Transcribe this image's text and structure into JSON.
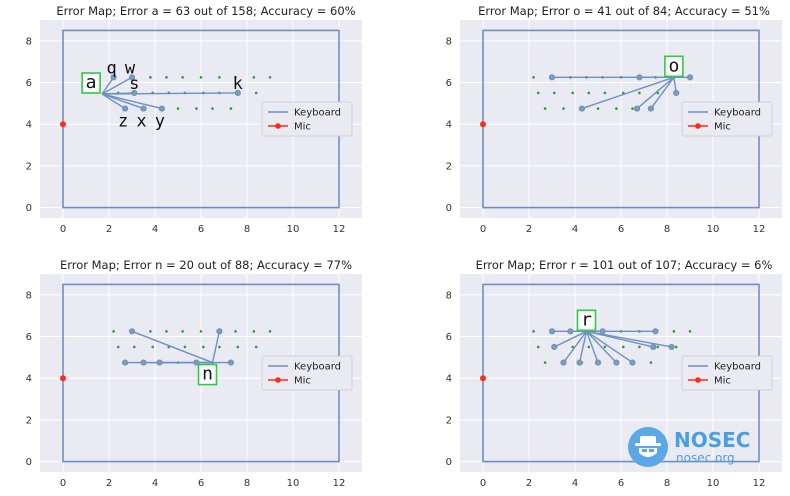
{
  "watermark": {
    "name": "NOSEC",
    "site": "nosec.org",
    "logo_icon": "hat-shield-icon"
  },
  "chart_data": [
    {
      "type": "scatter",
      "title": "Error Map; Error a = 63 out of 158; Accuracy =    60%",
      "xlim": [
        -1,
        13
      ],
      "ylim": [
        -0.5,
        9
      ],
      "xticks": [
        0,
        2,
        4,
        6,
        8,
        10,
        12
      ],
      "yticks": [
        0,
        2,
        4,
        6,
        8
      ],
      "grid": true,
      "legend": "center-right",
      "legend_entries": [
        "Keyboard",
        "Mic"
      ],
      "key": {
        "label": "a",
        "x": 1.7,
        "y": 5.45
      },
      "errors": [
        {
          "label": "q",
          "x": 2.2,
          "y": 6.25
        },
        {
          "label": "w",
          "x": 3.0,
          "y": 6.25
        },
        {
          "label": "s",
          "x": 3.1,
          "y": 5.5
        },
        {
          "label": "k",
          "x": 7.6,
          "y": 5.5
        },
        {
          "label": "z",
          "x": 2.7,
          "y": 4.75
        },
        {
          "label": "x",
          "x": 3.5,
          "y": 4.75
        },
        {
          "label": "y",
          "x": 4.3,
          "y": 4.75
        }
      ],
      "mic": {
        "x": 0,
        "y": 4
      }
    },
    {
      "type": "scatter",
      "title": "Error Map; Error o = 41 out of 84; Accuracy =    51%",
      "xlim": [
        -1,
        13
      ],
      "ylim": [
        -0.5,
        9
      ],
      "xticks": [
        0,
        2,
        4,
        6,
        8,
        10,
        12
      ],
      "yticks": [
        0,
        2,
        4,
        6,
        8
      ],
      "grid": true,
      "legend": "center-right",
      "legend_entries": [
        "Keyboard",
        "Mic"
      ],
      "key": {
        "label": "o",
        "x": 8.3,
        "y": 6.25
      },
      "errors": [
        {
          "x": 3.0,
          "y": 6.25
        },
        {
          "x": 6.8,
          "y": 6.25
        },
        {
          "x": 9.0,
          "y": 6.25
        },
        {
          "x": 8.4,
          "y": 5.5
        },
        {
          "x": 4.3,
          "y": 4.75
        },
        {
          "x": 6.7,
          "y": 4.75
        },
        {
          "x": 7.3,
          "y": 4.75
        }
      ],
      "mic": {
        "x": 0,
        "y": 4
      }
    },
    {
      "type": "scatter",
      "title": "Error Map; Error n = 20 out of 88; Accuracy =    77%",
      "xlim": [
        -1,
        13
      ],
      "ylim": [
        -0.5,
        9
      ],
      "xticks": [
        0,
        2,
        4,
        6,
        8,
        10,
        12
      ],
      "yticks": [
        0,
        2,
        4,
        6,
        8
      ],
      "grid": true,
      "legend": "center-right",
      "legend_entries": [
        "Keyboard",
        "Mic"
      ],
      "key": {
        "label": "n",
        "x": 6.5,
        "y": 4.75
      },
      "errors": [
        {
          "x": 3.0,
          "y": 6.25
        },
        {
          "x": 6.8,
          "y": 6.25
        },
        {
          "x": 2.7,
          "y": 4.75
        },
        {
          "x": 3.5,
          "y": 4.75
        },
        {
          "x": 4.2,
          "y": 4.75
        },
        {
          "x": 5.8,
          "y": 4.75
        },
        {
          "x": 7.3,
          "y": 4.75
        }
      ],
      "mic": {
        "x": 0,
        "y": 4
      }
    },
    {
      "type": "scatter",
      "title": "Error Map; Error r = 101 out of 107; Accuracy =    6%",
      "xlim": [
        -1,
        13
      ],
      "ylim": [
        -0.5,
        9
      ],
      "xticks": [
        0,
        2,
        4,
        6,
        8,
        10,
        12
      ],
      "yticks": [
        0,
        2,
        4,
        6,
        8
      ],
      "grid": true,
      "legend": "center-right",
      "legend_entries": [
        "Keyboard",
        "Mic"
      ],
      "key": {
        "label": "r",
        "x": 4.5,
        "y": 6.25
      },
      "errors": [
        {
          "x": 3.0,
          "y": 6.25
        },
        {
          "x": 3.8,
          "y": 6.25
        },
        {
          "x": 5.2,
          "y": 6.25
        },
        {
          "x": 7.5,
          "y": 6.25
        },
        {
          "x": 3.1,
          "y": 5.5
        },
        {
          "x": 7.4,
          "y": 5.5
        },
        {
          "x": 8.2,
          "y": 5.5
        },
        {
          "x": 3.5,
          "y": 4.75
        },
        {
          "x": 4.2,
          "y": 4.75
        },
        {
          "x": 5.0,
          "y": 4.75
        },
        {
          "x": 5.8,
          "y": 4.75
        },
        {
          "x": 6.5,
          "y": 4.75
        }
      ],
      "mic": {
        "x": 0,
        "y": 4
      }
    }
  ]
}
